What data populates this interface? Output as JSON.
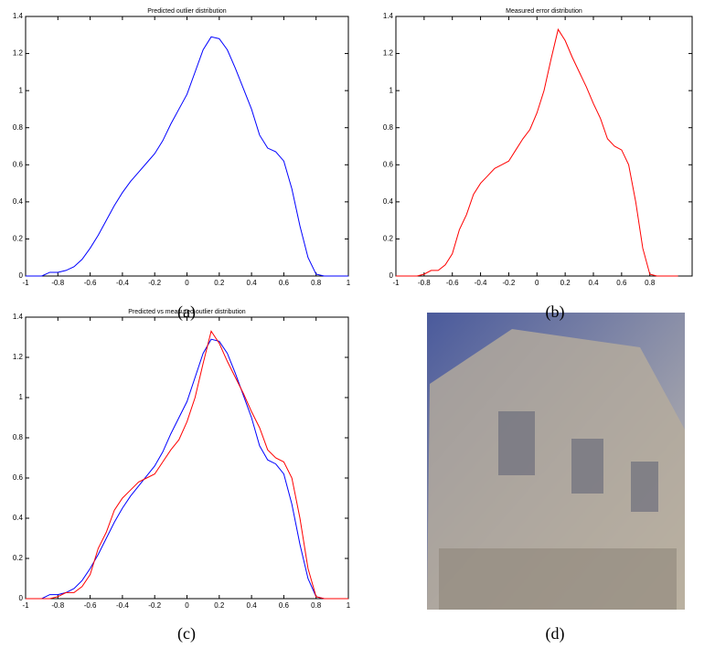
{
  "chart_data": [
    {
      "type": "line",
      "title": "Predicted outlier distribution",
      "x": [
        -1,
        -0.95,
        -0.9,
        -0.85,
        -0.8,
        -0.75,
        -0.7,
        -0.65,
        -0.6,
        -0.55,
        -0.5,
        -0.45,
        -0.4,
        -0.35,
        -0.3,
        -0.25,
        -0.2,
        -0.15,
        -0.1,
        -0.05,
        0,
        0.05,
        0.1,
        0.15,
        0.2,
        0.25,
        0.3,
        0.35,
        0.4,
        0.45,
        0.5,
        0.55,
        0.6,
        0.65,
        0.7,
        0.75,
        0.8,
        0.85,
        0.9,
        0.95,
        1
      ],
      "series": [
        {
          "color": "#0000ff",
          "values": [
            0,
            0,
            0,
            0.02,
            0.02,
            0.03,
            0.05,
            0.09,
            0.15,
            0.22,
            0.3,
            0.38,
            0.45,
            0.51,
            0.56,
            0.61,
            0.66,
            0.73,
            0.82,
            0.9,
            0.98,
            1.1,
            1.22,
            1.29,
            1.28,
            1.22,
            1.12,
            1.01,
            0.9,
            0.76,
            0.69,
            0.67,
            0.62,
            0.47,
            0.27,
            0.1,
            0.01,
            0,
            0,
            0,
            0
          ]
        }
      ],
      "xlim": [
        -1,
        1
      ],
      "xticks": [
        -1,
        -0.8,
        -0.6,
        -0.4,
        -0.2,
        0,
        0.2,
        0.4,
        0.6,
        0.8,
        1
      ],
      "ylim": [
        0,
        1.4
      ],
      "yticks": [
        0,
        0.2,
        0.4,
        0.6,
        0.8,
        1,
        1.2,
        1.4
      ]
    },
    {
      "type": "line",
      "title": "Measured error distribution",
      "x": [
        -1,
        -0.95,
        -0.9,
        -0.85,
        -0.8,
        -0.75,
        -0.7,
        -0.65,
        -0.6,
        -0.55,
        -0.5,
        -0.45,
        -0.4,
        -0.35,
        -0.3,
        -0.25,
        -0.2,
        -0.15,
        -0.1,
        -0.05,
        0,
        0.05,
        0.1,
        0.15,
        0.2,
        0.25,
        0.3,
        0.35,
        0.4,
        0.45,
        0.5,
        0.55,
        0.6,
        0.65,
        0.7,
        0.75,
        0.8,
        0.85,
        0.9,
        0.95,
        1
      ],
      "series": [
        {
          "color": "#ff0000",
          "values": [
            0,
            0,
            0,
            0,
            0.01,
            0.03,
            0.03,
            0.06,
            0.12,
            0.25,
            0.33,
            0.44,
            0.5,
            0.54,
            0.58,
            0.6,
            0.62,
            0.68,
            0.74,
            0.79,
            0.88,
            1.0,
            1.17,
            1.33,
            1.27,
            1.18,
            1.1,
            1.02,
            0.93,
            0.85,
            0.74,
            0.7,
            0.68,
            0.6,
            0.4,
            0.15,
            0.01,
            0,
            0,
            0,
            0
          ]
        }
      ],
      "xlim": [
        -1,
        1.1
      ],
      "xticks": [
        -1,
        -0.8,
        -0.6,
        -0.4,
        -0.2,
        0,
        0.2,
        0.4,
        0.6,
        0.8
      ],
      "ylim": [
        0,
        1.4
      ],
      "yticks": [
        0,
        0.2,
        0.4,
        0.6,
        0.8,
        1,
        1.2,
        1.4
      ]
    },
    {
      "type": "line",
      "title": "Predicted vs measured outlier distribution",
      "x": [
        -1,
        -0.95,
        -0.9,
        -0.85,
        -0.8,
        -0.75,
        -0.7,
        -0.65,
        -0.6,
        -0.55,
        -0.5,
        -0.45,
        -0.4,
        -0.35,
        -0.3,
        -0.25,
        -0.2,
        -0.15,
        -0.1,
        -0.05,
        0,
        0.05,
        0.1,
        0.15,
        0.2,
        0.25,
        0.3,
        0.35,
        0.4,
        0.45,
        0.5,
        0.55,
        0.6,
        0.65,
        0.7,
        0.75,
        0.8,
        0.85,
        0.9,
        0.95,
        1
      ],
      "series": [
        {
          "color": "#0000ff",
          "values": [
            0,
            0,
            0,
            0.02,
            0.02,
            0.03,
            0.05,
            0.09,
            0.15,
            0.22,
            0.3,
            0.38,
            0.45,
            0.51,
            0.56,
            0.61,
            0.66,
            0.73,
            0.82,
            0.9,
            0.98,
            1.1,
            1.22,
            1.29,
            1.28,
            1.22,
            1.12,
            1.01,
            0.9,
            0.76,
            0.69,
            0.67,
            0.62,
            0.47,
            0.27,
            0.1,
            0.01,
            0,
            0,
            0,
            0
          ]
        },
        {
          "color": "#ff0000",
          "values": [
            0,
            0,
            0,
            0,
            0.01,
            0.03,
            0.03,
            0.06,
            0.12,
            0.25,
            0.33,
            0.44,
            0.5,
            0.54,
            0.58,
            0.6,
            0.62,
            0.68,
            0.74,
            0.79,
            0.88,
            1.0,
            1.17,
            1.33,
            1.27,
            1.18,
            1.1,
            1.02,
            0.93,
            0.85,
            0.74,
            0.7,
            0.68,
            0.6,
            0.4,
            0.15,
            0.01,
            0,
            0,
            0,
            0
          ]
        }
      ],
      "xlim": [
        -1,
        1
      ],
      "xticks": [
        -1,
        -0.8,
        -0.6,
        -0.4,
        -0.2,
        0,
        0.2,
        0.4,
        0.6,
        0.8,
        1
      ],
      "ylim": [
        0,
        1.4
      ],
      "yticks": [
        0,
        0.2,
        0.4,
        0.6,
        0.8,
        1,
        1.2,
        1.4
      ]
    }
  ],
  "captions": [
    "(a)",
    "(b)",
    "(c)",
    "(d)"
  ]
}
